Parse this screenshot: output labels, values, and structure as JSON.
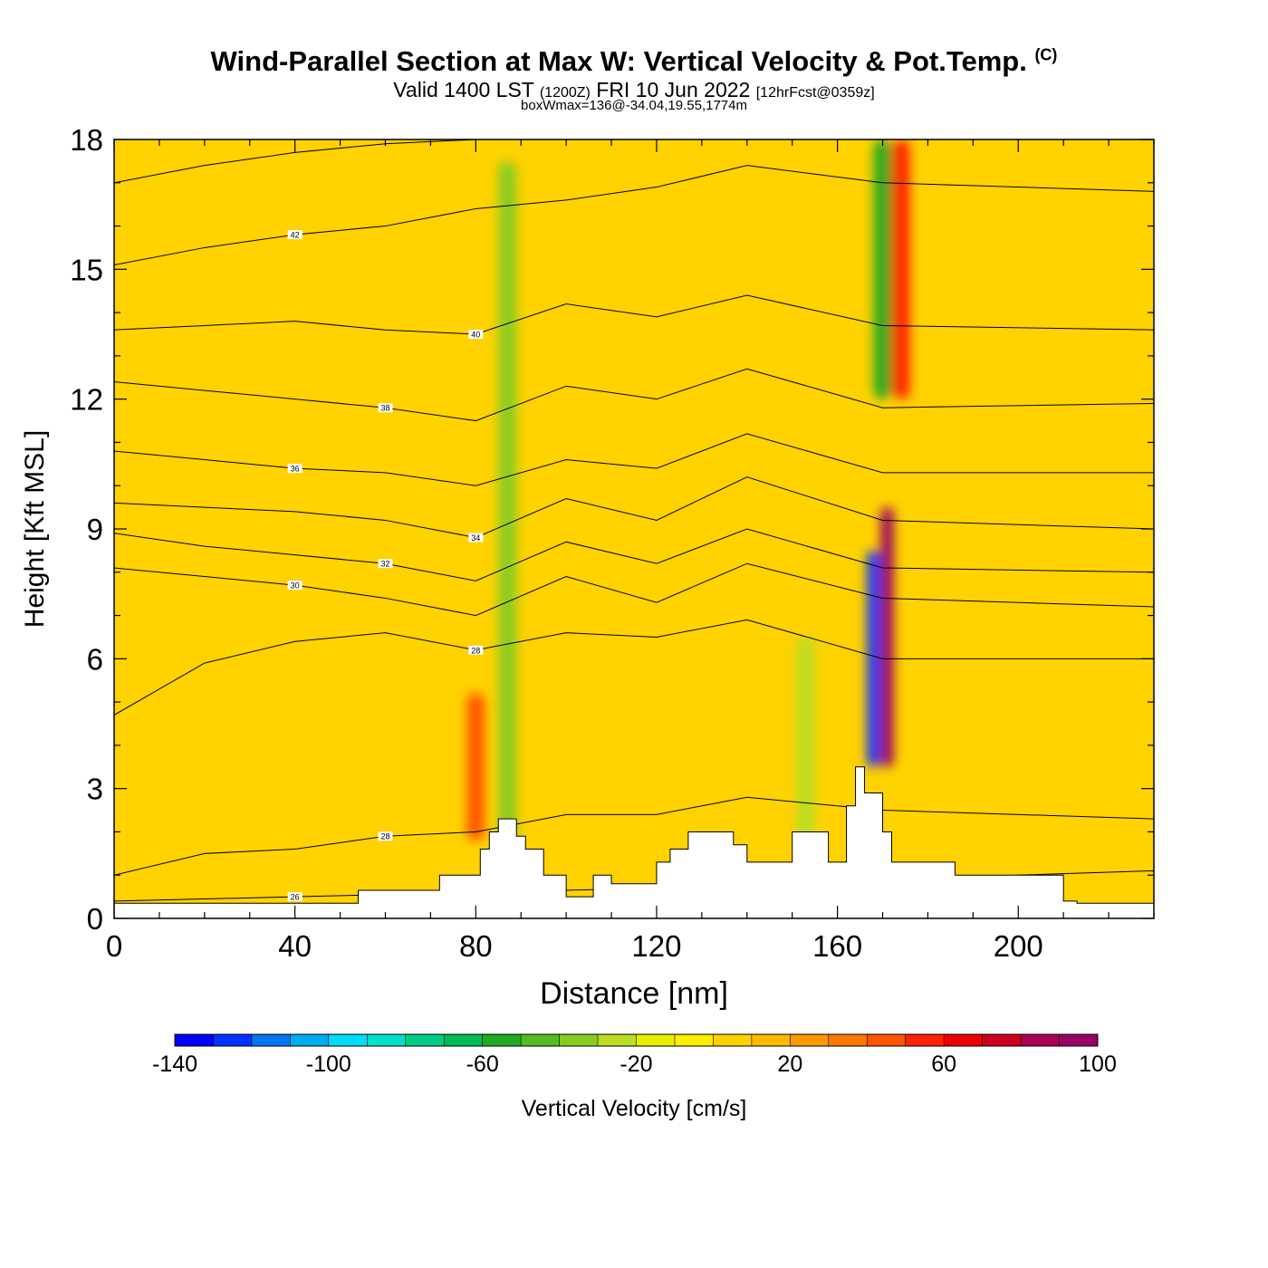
{
  "title": {
    "main": "Wind-Parallel Section at Max W: Vertical Velocity & Pot.Temp.",
    "copyright": "(C)",
    "valid_prefix": "Valid 1400 LST",
    "valid_zulu": "(1200Z)",
    "valid_date": "FRI 10 Jun 2022",
    "forecast": "[12hrFcst@0359z]",
    "box_info": "boxWmax=136@-34.04,19.55,1774m"
  },
  "chart_data": {
    "type": "heatmap",
    "title": "Wind-Parallel Section at Max W: Vertical Velocity & Pot.Temp.",
    "xlabel": "Distance [nm]",
    "ylabel": "Height [Kft MSL]",
    "xlim": [
      0,
      230
    ],
    "ylim": [
      0,
      18
    ],
    "x_ticks": [
      0,
      40,
      80,
      120,
      160,
      200
    ],
    "y_ticks": [
      0,
      3,
      6,
      9,
      12,
      15,
      18
    ],
    "colorbar": {
      "label": "Vertical Velocity [cm/s]",
      "min": -140,
      "max": 100,
      "step": 10,
      "tick_labels": [
        "-140",
        "-100",
        "-60",
        "-20",
        "20",
        "60",
        "100"
      ],
      "colors": [
        "#0000ff",
        "#0033ff",
        "#0077ee",
        "#00aaee",
        "#00ddff",
        "#00e0cc",
        "#00cc88",
        "#00bb55",
        "#22aa22",
        "#55bb22",
        "#88cc22",
        "#bbdd22",
        "#e8ee00",
        "#ffee00",
        "#ffd200",
        "#ffbb00",
        "#ff9900",
        "#ff7700",
        "#ff5500",
        "#ff2200",
        "#ee0000",
        "#cc0022",
        "#aa0055",
        "#990066"
      ]
    },
    "background_w": 8,
    "w_features": [
      {
        "name": "updraft-west-ridge",
        "x": 80,
        "ymin": 1.8,
        "ymax": 5.2,
        "w": 40
      },
      {
        "name": "downdraft-band-87",
        "x": 87,
        "ymin": 0.8,
        "ymax": 17.5,
        "w": -35
      },
      {
        "name": "downdraft-band-153",
        "x": 153,
        "ymin": 1.5,
        "ymax": 6.5,
        "w": -25
      },
      {
        "name": "downdraft-core-168",
        "x": 168,
        "ymin": 3.5,
        "ymax": 8.5,
        "w": -130
      },
      {
        "name": "updraft-core-171",
        "x": 171,
        "ymin": 3.5,
        "ymax": 9.5,
        "w": 100
      },
      {
        "name": "downdraft-upper-170",
        "x": 170,
        "ymin": 12,
        "ymax": 18,
        "w": -60
      },
      {
        "name": "updraft-upper-174",
        "x": 174,
        "ymin": 12,
        "ymax": 18,
        "w": 50
      }
    ],
    "terrain": {
      "x": [
        0,
        54,
        54,
        72,
        72,
        81,
        81,
        83,
        83,
        85,
        85,
        89,
        89,
        91,
        91,
        95,
        95,
        100,
        100,
        106,
        106,
        110,
        110,
        120,
        120,
        123,
        123,
        127,
        127,
        137,
        137,
        140,
        140,
        150,
        150,
        158,
        158,
        162,
        162,
        164,
        164,
        166,
        166,
        170,
        170,
        172,
        172,
        186,
        186,
        210,
        210,
        213,
        213,
        230
      ],
      "height": [
        0.35,
        0.35,
        0.65,
        0.65,
        1.0,
        1.0,
        1.6,
        1.6,
        2.0,
        2.0,
        2.3,
        2.3,
        1.9,
        1.9,
        1.6,
        1.6,
        1.0,
        1.0,
        0.5,
        0.5,
        1.0,
        1.0,
        0.8,
        0.8,
        1.3,
        1.3,
        1.6,
        1.6,
        2.0,
        2.0,
        1.7,
        1.7,
        1.3,
        1.3,
        2.0,
        2.0,
        1.3,
        1.3,
        2.6,
        2.6,
        3.5,
        3.5,
        2.9,
        2.9,
        2.0,
        2.0,
        1.3,
        1.3,
        1.0,
        1.0,
        0.4,
        0.4,
        0.35,
        0.35
      ]
    },
    "theta_contours": [
      {
        "label": "26",
        "y": [
          0.4,
          0.45,
          0.5,
          0.55,
          0.6,
          0.65,
          0.7,
          0.8,
          0.9,
          1.1
        ]
      },
      {
        "label": "28",
        "y": [
          1.0,
          1.5,
          1.6,
          1.9,
          2.0,
          2.4,
          2.4,
          2.8,
          2.5,
          2.3
        ]
      },
      {
        "label": "28",
        "y": [
          4.7,
          5.9,
          6.4,
          6.6,
          6.2,
          6.6,
          6.5,
          6.9,
          6.0,
          6.0
        ]
      },
      {
        "label": "30",
        "y": [
          8.1,
          7.9,
          7.7,
          7.4,
          7.0,
          7.9,
          7.3,
          8.2,
          7.4,
          7.2
        ]
      },
      {
        "label": "32",
        "y": [
          8.9,
          8.6,
          8.4,
          8.2,
          7.8,
          8.7,
          8.2,
          9.0,
          8.1,
          8.0
        ]
      },
      {
        "label": "34",
        "y": [
          9.6,
          9.5,
          9.4,
          9.2,
          8.8,
          9.7,
          9.2,
          10.2,
          9.2,
          9.0
        ]
      },
      {
        "label": "36",
        "y": [
          10.8,
          10.6,
          10.4,
          10.3,
          10.0,
          10.6,
          10.4,
          11.2,
          10.3,
          10.3
        ]
      },
      {
        "label": "38",
        "y": [
          12.4,
          12.2,
          12.0,
          11.8,
          11.5,
          12.3,
          12.0,
          12.7,
          11.8,
          11.9
        ]
      },
      {
        "label": "40",
        "y": [
          13.6,
          13.7,
          13.8,
          13.6,
          13.5,
          14.2,
          13.9,
          14.4,
          13.7,
          13.6
        ]
      },
      {
        "label": "42",
        "y": [
          15.1,
          15.5,
          15.8,
          16.0,
          16.4,
          16.6,
          16.9,
          17.4,
          17.0,
          16.8
        ]
      },
      {
        "label": "",
        "y": [
          17.0,
          17.4,
          17.7,
          17.9,
          18.0,
          18.0,
          18.0,
          18.0,
          18.0,
          18.0
        ]
      }
    ],
    "contour_x": [
      0,
      20,
      40,
      60,
      80,
      100,
      120,
      140,
      170,
      230
    ]
  }
}
